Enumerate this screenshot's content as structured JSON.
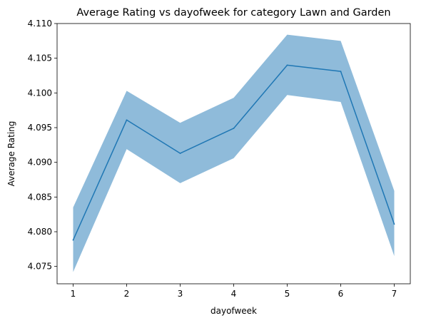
{
  "chart_data": {
    "type": "line",
    "title": "Average Rating vs dayofweek for category Lawn and Garden",
    "xlabel": "dayofweek",
    "ylabel": "Average Rating",
    "xlim": [
      0.7,
      7.3
    ],
    "ylim": [
      4.0725,
      4.11
    ],
    "xticks": [
      1,
      2,
      3,
      4,
      5,
      6,
      7
    ],
    "xtick_labels": [
      "1",
      "2",
      "3",
      "4",
      "5",
      "6",
      "7"
    ],
    "yticks": [
      4.075,
      4.08,
      4.085,
      4.09,
      4.095,
      4.1,
      4.105,
      4.11
    ],
    "ytick_labels": [
      "4.075",
      "4.080",
      "4.085",
      "4.090",
      "4.095",
      "4.100",
      "4.105",
      "4.110"
    ],
    "grid": false,
    "series": [
      {
        "x": [
          1,
          2,
          3,
          4,
          5,
          6,
          7
        ],
        "values": [
          4.0788,
          4.0961,
          4.0913,
          4.0949,
          4.104,
          4.1031,
          4.0811
        ],
        "ci_lower": [
          4.0742,
          4.0919,
          4.087,
          4.0906,
          4.0997,
          4.0987,
          4.0765
        ],
        "ci_upper": [
          4.0835,
          4.1003,
          4.0957,
          4.0993,
          4.1084,
          4.1075,
          4.0859
        ],
        "line_color": "#1f77b4",
        "band_color": "#8fbbda"
      }
    ]
  }
}
